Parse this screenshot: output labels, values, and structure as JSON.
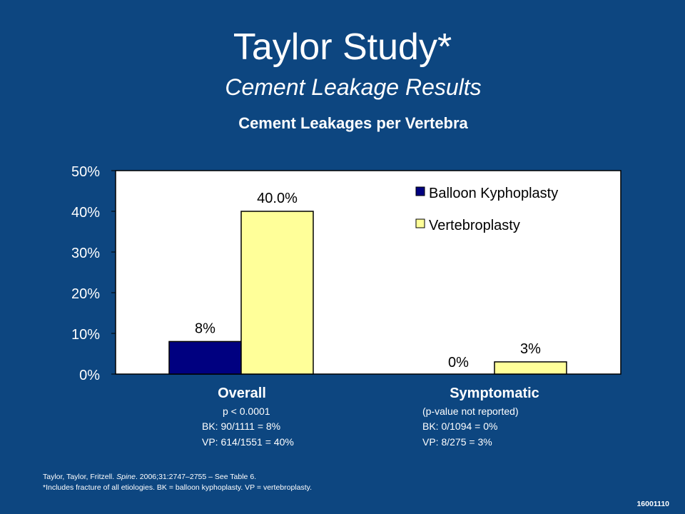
{
  "slide": {
    "title": "Taylor Study*",
    "subtitle": "Cement Leakage Results",
    "slide_id": "16001110"
  },
  "chart_data": {
    "type": "bar",
    "title": "Cement Leakages per Vertebra",
    "categories": [
      "Overall",
      "Symptomatic"
    ],
    "series": [
      {
        "name": "Balloon Kyphoplasty",
        "values": [
          8,
          0
        ],
        "labels": [
          "8%",
          "0%"
        ],
        "color": "#000080"
      },
      {
        "name": "Vertebroplasty",
        "values": [
          40.0,
          3
        ],
        "labels": [
          "40.0%",
          "3%"
        ],
        "color": "#ffff99"
      }
    ],
    "ylim": [
      0,
      50
    ],
    "yticks": [
      0,
      10,
      20,
      30,
      40,
      50
    ],
    "ytick_labels": [
      "0%",
      "10%",
      "20%",
      "30%",
      "40%",
      "50%"
    ],
    "legend_position": "top-right",
    "grid": false
  },
  "annotations": {
    "overall": {
      "pvalue": "p < 0.0001",
      "bk": "BK: 90/1111 = 8%",
      "vp": "VP: 614/1551 = 40%"
    },
    "symptomatic": {
      "pvalue": "(p-value not reported)",
      "bk": "BK: 0/1094 = 0%",
      "vp": "VP: 8/275 = 3%"
    }
  },
  "footnotes": {
    "line1_before": "Taylor, Taylor, Fritzell. ",
    "line1_journal": "Spine",
    "line1_after": ". 2006;31:2747–2755 – See Table 6.",
    "line2": "*Includes fracture of all etiologies. BK = balloon kyphoplasty. VP = vertebroplasty."
  }
}
